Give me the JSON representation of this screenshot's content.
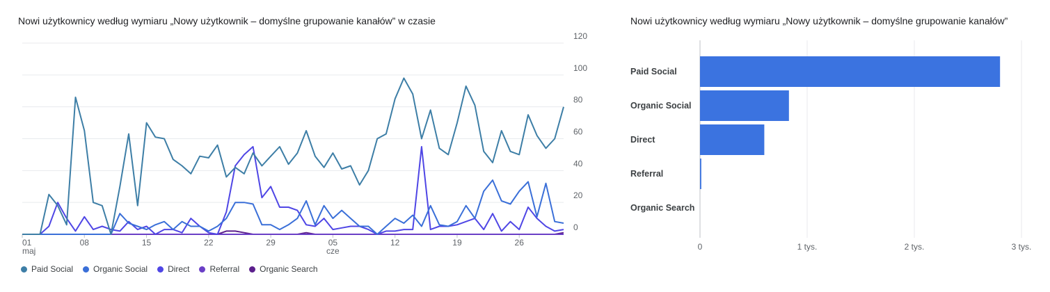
{
  "chart_data": [
    {
      "type": "line",
      "title": "Nowi użytkownicy według wymiaru „Nowy użytkownik – domyślne grupowanie kanałów” w czasie",
      "xlabel": "",
      "ylabel": "",
      "ylim": [
        0,
        120
      ],
      "y_ticks": [
        0,
        20,
        40,
        60,
        80,
        100,
        120
      ],
      "x_tick_labels": [
        {
          "day": 0,
          "label": "01",
          "sub": "maj"
        },
        {
          "day": 7,
          "label": "08",
          "sub": ""
        },
        {
          "day": 14,
          "label": "15",
          "sub": ""
        },
        {
          "day": 21,
          "label": "22",
          "sub": ""
        },
        {
          "day": 28,
          "label": "29",
          "sub": ""
        },
        {
          "day": 35,
          "label": "05",
          "sub": "cze"
        },
        {
          "day": 42,
          "label": "12",
          "sub": ""
        },
        {
          "day": 49,
          "label": "19",
          "sub": ""
        },
        {
          "day": 56,
          "label": "26",
          "sub": ""
        }
      ],
      "grid": true,
      "legend_position": "bottom-left",
      "series": [
        {
          "name": "Paid Social",
          "color": "#3d7ea6",
          "values": [
            0,
            0,
            0,
            25,
            18,
            6,
            86,
            65,
            20,
            18,
            0,
            30,
            63,
            18,
            70,
            61,
            60,
            47,
            43,
            38,
            49,
            48,
            56,
            36,
            42,
            38,
            51,
            43,
            49,
            55,
            44,
            51,
            65,
            49,
            42,
            51,
            41,
            43,
            31,
            40,
            60,
            63,
            85,
            98,
            88,
            60,
            78,
            54,
            50,
            70,
            93,
            81,
            52,
            45,
            65,
            52,
            50,
            75,
            62,
            54,
            60,
            80
          ]
        },
        {
          "name": "Organic Social",
          "color": "#3a6fd8",
          "values": [
            0,
            0,
            0,
            0,
            0,
            0,
            0,
            0,
            0,
            0,
            0,
            13,
            7,
            5,
            3,
            6,
            8,
            3,
            8,
            5,
            5,
            2,
            5,
            10,
            20,
            20,
            19,
            6,
            6,
            3,
            6,
            10,
            21,
            6,
            18,
            10,
            15,
            10,
            5,
            5,
            0,
            5,
            10,
            7,
            12,
            5,
            18,
            6,
            5,
            8,
            18,
            10,
            27,
            34,
            21,
            19,
            27,
            33,
            11,
            32,
            8,
            7
          ]
        },
        {
          "name": "Direct",
          "color": "#4f46e5",
          "values": [
            0,
            0,
            0,
            5,
            20,
            10,
            2,
            11,
            3,
            5,
            3,
            2,
            8,
            3,
            5,
            0,
            3,
            3,
            1,
            10,
            5,
            1,
            0,
            14,
            43,
            50,
            55,
            23,
            30,
            17,
            17,
            15,
            6,
            5,
            10,
            3,
            4,
            5,
            5,
            3,
            0,
            2,
            2,
            3,
            3,
            55,
            3,
            5,
            5,
            6,
            8,
            10,
            3,
            13,
            2,
            8,
            3,
            17,
            10,
            5,
            2,
            3
          ]
        },
        {
          "name": "Referral",
          "color": "#6a3fc6",
          "values": [
            0,
            0,
            0,
            0,
            0,
            0,
            0,
            0,
            0,
            0,
            0,
            0,
            0,
            0,
            0,
            0,
            0,
            0,
            0,
            0,
            0,
            0,
            0,
            0,
            0,
            0,
            0,
            0,
            0,
            0,
            0,
            0,
            0,
            0,
            0,
            0,
            0,
            0,
            0,
            0,
            0,
            0,
            0,
            0,
            0,
            0,
            0,
            0,
            0,
            0,
            0,
            0,
            0,
            0,
            0,
            0,
            0,
            0,
            0,
            0,
            0,
            0
          ]
        },
        {
          "name": "Organic Search",
          "color": "#5b1f8c",
          "values": [
            0,
            0,
            0,
            0,
            0,
            0,
            0,
            0,
            0,
            0,
            0,
            0,
            0,
            0,
            0,
            0,
            0,
            0,
            0,
            0,
            0,
            0,
            0,
            2,
            2,
            1,
            0,
            0,
            0,
            0,
            0,
            0,
            1,
            0,
            0,
            0,
            0,
            0,
            0,
            0,
            0,
            0,
            0,
            0,
            0,
            0,
            0,
            0,
            0,
            0,
            0,
            0,
            0,
            0,
            0,
            0,
            0,
            0,
            0,
            0,
            0,
            1
          ]
        }
      ]
    },
    {
      "type": "bar",
      "orientation": "horizontal",
      "title": "Nowi użytkownicy według wymiaru „Nowy użytkownik – domyślne grupowanie kanałów”",
      "xlabel": "",
      "ylabel": "",
      "categories": [
        "Paid Social",
        "Organic Social",
        "Direct",
        "Referral",
        "Organic Search"
      ],
      "values": [
        2800,
        830,
        600,
        12,
        2
      ],
      "color": "#3b73e0",
      "xlim": [
        0,
        3000
      ],
      "x_ticks": [
        {
          "value": 0,
          "label": "0"
        },
        {
          "value": 1000,
          "label": "1 tys."
        },
        {
          "value": 2000,
          "label": "2 tys."
        },
        {
          "value": 3000,
          "label": "3 tys."
        }
      ],
      "grid": true
    }
  ]
}
